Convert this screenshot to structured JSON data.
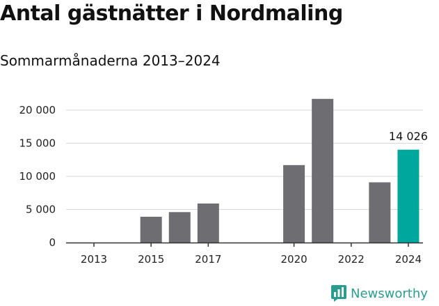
{
  "chart_data": {
    "type": "bar",
    "title": "Antal gästnätter i Nordmaling",
    "subtitle": "Sommarmånaderna 2013–2024",
    "categories": [
      "2013",
      "2014",
      "2015",
      "2016",
      "2017",
      "2018",
      "2019",
      "2020",
      "2021",
      "2022",
      "2023",
      "2024"
    ],
    "values": [
      0,
      0,
      3900,
      4600,
      5900,
      0,
      0,
      11700,
      21700,
      0,
      9100,
      14026
    ],
    "x_tick_labels": [
      "2013",
      "2015",
      "2017",
      "2020",
      "2022",
      "2024"
    ],
    "y_ticks": [
      0,
      5000,
      10000,
      15000,
      20000
    ],
    "y_tick_labels": [
      "0",
      "5 000",
      "10 000",
      "15 000",
      "20 000"
    ],
    "ylim": [
      0,
      22000
    ],
    "xlabel": "",
    "ylabel": "",
    "highlight_index": 11,
    "highlight_label": "14 026",
    "grid": true,
    "colors": {
      "bar": "#6e6d72",
      "highlight": "#00a79d",
      "grid": "#d9d9d9",
      "axis": "#333333"
    }
  },
  "branding": {
    "logo_text": "Newsworthy",
    "logo_icon": "bar-chart-icon",
    "logo_color": "#2a9d8f"
  }
}
